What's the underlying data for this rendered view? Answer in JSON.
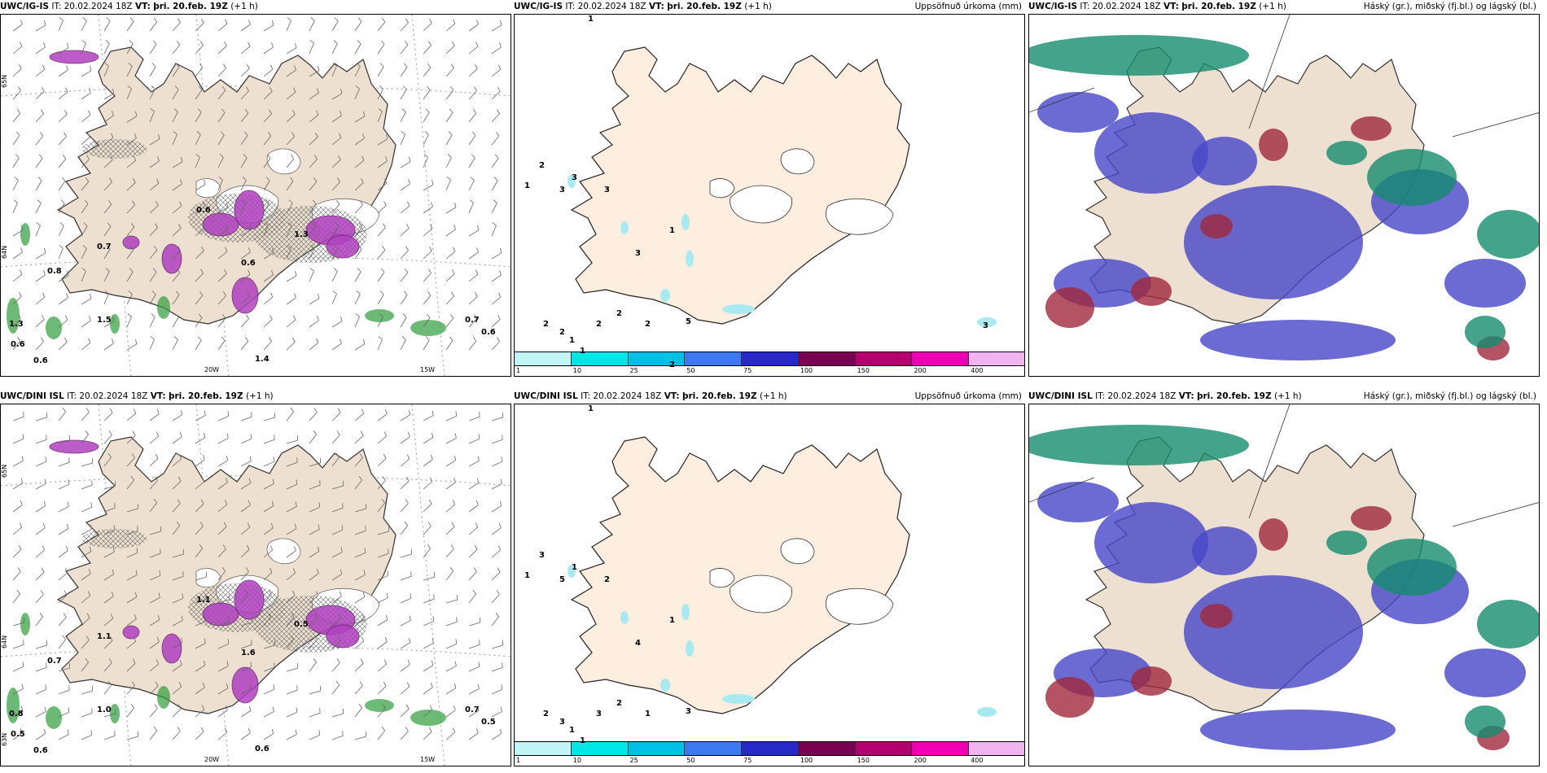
{
  "rows": [
    {
      "model": "UWC/IG-IS",
      "it": "IT: 20.02.2024 18Z",
      "vt_label": "VT:",
      "vt": "þri. 20.feb. 19Z",
      "lead": "(+1 h)",
      "precip_title": "Uppsöfnuð úrkoma (mm)",
      "cloud_title": "Háský (gr.), miðský (fj.bl.) og lágský (bl.)",
      "precip_labels": [
        "1",
        "2",
        "1",
        "3",
        "3",
        "3",
        "1",
        "3",
        "2",
        "2",
        "1",
        "2",
        "1",
        "2",
        "2",
        "5",
        "3",
        "2"
      ],
      "snow_labels": [
        "0.7",
        "0.8",
        "0.6",
        "0.6",
        "0.7",
        "0.6",
        "1.4",
        "1.3",
        "0.6",
        "0.6",
        "1.3",
        "1.5"
      ],
      "lat_labels": [
        "65N",
        "64N"
      ],
      "lon_labels": [
        "20W",
        "15W"
      ]
    },
    {
      "model": "UWC/DINI ISL",
      "it": "IT: 20.02.2024 18Z",
      "vt_label": "VT:",
      "vt": "þri. 20.feb. 19Z",
      "lead": "(+1 h)",
      "precip_title": "Uppsöfnuð úrkoma (mm)",
      "cloud_title": "Háský (gr.), miðský (fj.bl.) og lágský (bl.)",
      "precip_labels": [
        "1",
        "3",
        "1",
        "1",
        "5",
        "2",
        "1",
        "4",
        "2",
        "3",
        "1",
        "3",
        "1",
        "2",
        "1",
        "3"
      ],
      "snow_labels": [
        "1.1",
        "0.7",
        "0.5",
        "0.6",
        "0.7",
        "0.5",
        "0.6",
        "0.8",
        "1.1",
        "1.6",
        "0.5",
        "1.0"
      ],
      "lat_labels": [
        "65N",
        "64N",
        "63N"
      ],
      "lon_labels": [
        "20W",
        "15W"
      ]
    }
  ],
  "colorbar": {
    "ticks": [
      "1",
      "10",
      "25",
      "50",
      "75",
      "100",
      "150",
      "200",
      "400"
    ],
    "colors": [
      "#c2f6f6",
      "#00e6e6",
      "#00c0e6",
      "#3c78f0",
      "#2828c8",
      "#780050",
      "#b4006e",
      "#f000b4",
      "#f0b4f0"
    ]
  },
  "colors": {
    "land": "#eee0d0",
    "land_precip": "#fdeee0",
    "wind": "#666666",
    "snow": "#b040c0",
    "green": "#2e9c3a",
    "cloud_low": "#4646c8",
    "cloud_mid": "#a0283c",
    "cloud_high": "#148c6e"
  }
}
